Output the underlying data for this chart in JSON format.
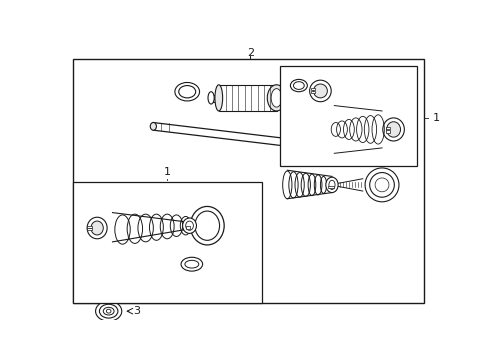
{
  "bg_color": "#ffffff",
  "line_color": "#1a1a1a",
  "gray_fill": "#e8e8e8",
  "mid_gray": "#c0c0c0"
}
